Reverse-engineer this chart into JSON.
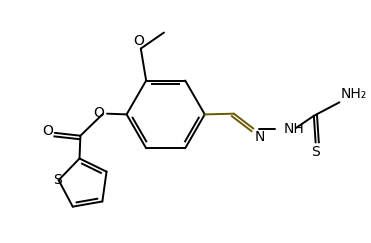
{
  "bg_color": "#ffffff",
  "lc": "#000000",
  "bc": "#6b5a00",
  "lw": 1.4,
  "fs": 9,
  "figsize": [
    3.71,
    2.43
  ],
  "dpi": 100,
  "xlim": [
    0,
    10
  ],
  "ylim": [
    0,
    6.8
  ]
}
